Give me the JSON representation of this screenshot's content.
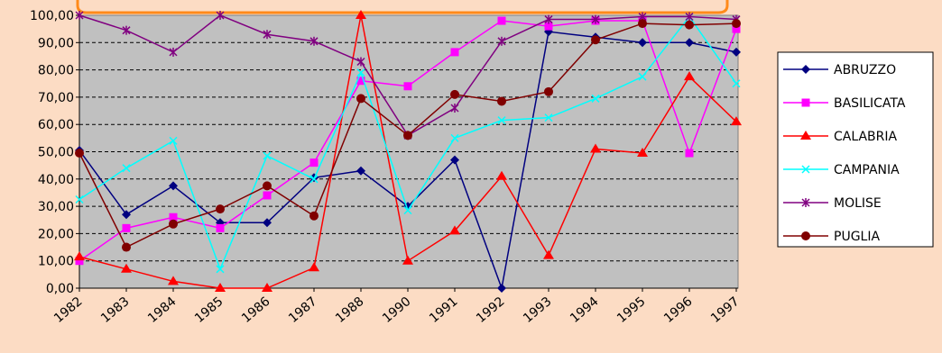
{
  "chart_data": {
    "type": "line",
    "title": "",
    "xlabel": "",
    "ylabel": "",
    "categories": [
      "1982",
      "1983",
      "1984",
      "1985",
      "1986",
      "1987",
      "1988",
      "1990",
      "1991",
      "1992",
      "1993",
      "1994",
      "1995",
      "1996",
      "1997"
    ],
    "ylim": [
      0,
      100
    ],
    "y_ticks": [
      "0,00",
      "10,00",
      "20,00",
      "30,00",
      "40,00",
      "50,00",
      "60,00",
      "70,00",
      "80,00",
      "90,00",
      "100,00"
    ],
    "grid": true,
    "legend_position": "right",
    "plot_background": "#c0c0c0",
    "series": [
      {
        "name": "ABRUZZO",
        "color": "#000080",
        "marker": "diamond",
        "values": [
          50.5,
          27,
          37.5,
          24,
          24,
          40.5,
          43,
          30,
          47,
          0,
          94,
          92,
          90,
          90,
          86.5
        ]
      },
      {
        "name": "BASILICATA",
        "color": "#ff00ff",
        "marker": "square",
        "values": [
          10,
          22,
          26,
          22,
          34,
          46,
          76,
          74,
          86.5,
          98,
          96,
          98,
          98,
          49.5,
          95
        ]
      },
      {
        "name": "CALABRIA",
        "color": "#ff0000",
        "marker": "triangle",
        "values": [
          11.5,
          7,
          2.5,
          0,
          0,
          7.5,
          100,
          10,
          21,
          41,
          12,
          51,
          49.5,
          77.5,
          61
        ]
      },
      {
        "name": "CAMPANIA",
        "color": "#00ffff",
        "marker": "x",
        "values": [
          32.5,
          44,
          54,
          7,
          48.5,
          40,
          79,
          28.5,
          55,
          61.5,
          62.5,
          69.5,
          77.5,
          99.5,
          75
        ]
      },
      {
        "name": "MOLISE",
        "color": "#800080",
        "marker": "star",
        "values": [
          100,
          94.5,
          86.5,
          100,
          93,
          90.5,
          83,
          56,
          66,
          90.5,
          98.5,
          98.5,
          99.5,
          99.5,
          98.5
        ]
      },
      {
        "name": "PUGLIA",
        "color": "#800000",
        "marker": "circle",
        "values": [
          49.5,
          15,
          23.5,
          29,
          37.5,
          26.5,
          69.5,
          56,
          71,
          68.5,
          72,
          91,
          97,
          96.5,
          97
        ]
      }
    ]
  }
}
